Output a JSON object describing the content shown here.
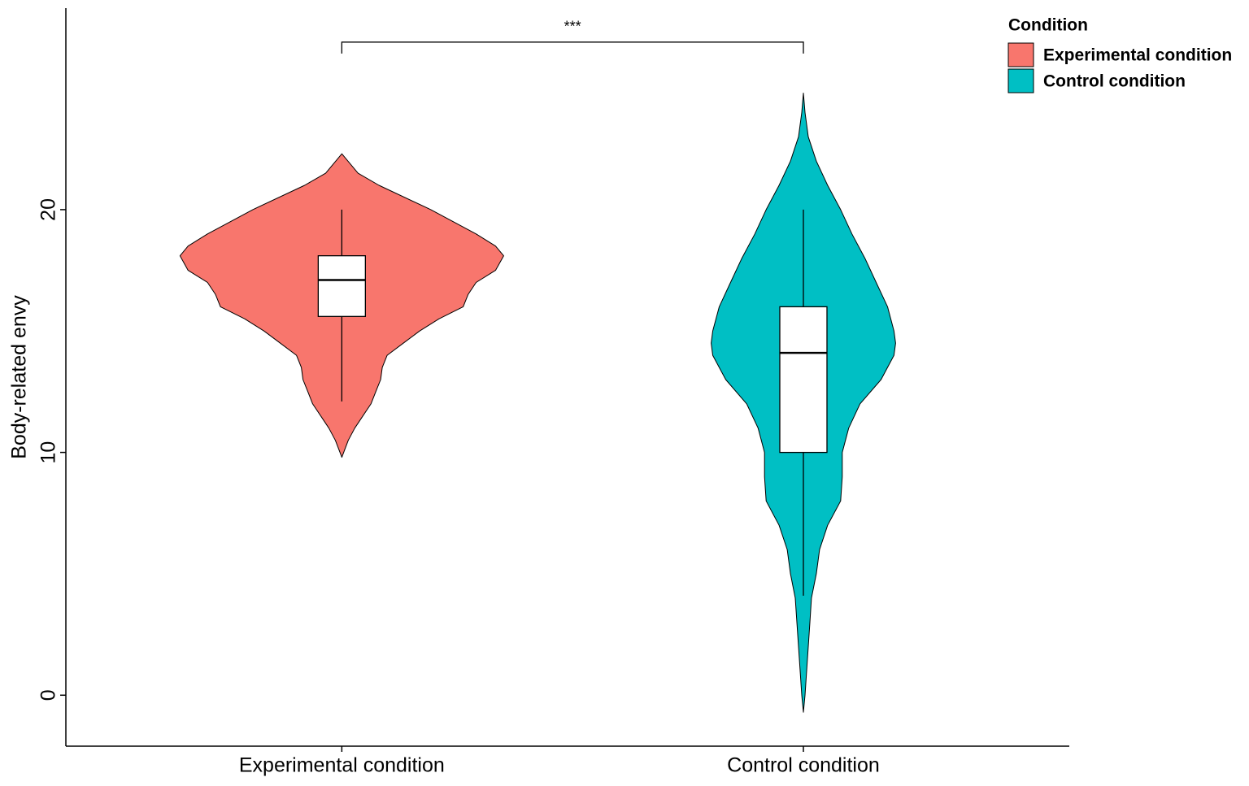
{
  "chart_data": {
    "type": "violin",
    "ylabel": "Body-related envy",
    "categories": [
      "Experimental condition",
      "Control condition"
    ],
    "series": [
      {
        "name": "Experimental condition",
        "color": "#F8766D",
        "box": {
          "whisker_low": 12.1,
          "q1": 15.6,
          "median": 17.1,
          "q3": 18.1,
          "whisker_high": 20
        },
        "violin": {
          "y": [
            22.3,
            21.5,
            21,
            20,
            19,
            18.5,
            18.1,
            17.5,
            17,
            16.5,
            16,
            15.5,
            15,
            14.5,
            14,
            13.5,
            13,
            12.5,
            12,
            11.5,
            11,
            10.5,
            9.8
          ],
          "density": [
            0,
            0.1,
            0.23,
            0.55,
            0.83,
            0.95,
            1,
            0.95,
            0.83,
            0.78,
            0.75,
            0.6,
            0.48,
            0.38,
            0.28,
            0.25,
            0.24,
            0.21,
            0.18,
            0.13,
            0.08,
            0.04,
            0
          ]
        }
      },
      {
        "name": "Control condition",
        "color": "#00BFC4",
        "box": {
          "whisker_low": 4.1,
          "q1": 10,
          "median": 14.1,
          "q3": 16,
          "whisker_high": 20
        },
        "violin": {
          "y": [
            24.8,
            24,
            23,
            22,
            21,
            20,
            19,
            18,
            17,
            16,
            15,
            14.5,
            14,
            13,
            12,
            11,
            10,
            9,
            8,
            7,
            6,
            5,
            4,
            3,
            2,
            1,
            0,
            -0.7
          ],
          "density": [
            0,
            0.01,
            0.03,
            0.08,
            0.15,
            0.23,
            0.3,
            0.38,
            0.45,
            0.52,
            0.56,
            0.57,
            0.56,
            0.48,
            0.35,
            0.28,
            0.24,
            0.24,
            0.23,
            0.15,
            0.1,
            0.08,
            0.05,
            0.04,
            0.03,
            0.02,
            0.01,
            0
          ]
        }
      }
    ],
    "ylim": [
      -2.1,
      28.3
    ],
    "yticks": [
      0,
      10,
      20
    ],
    "grid": false,
    "legend_title": "Condition",
    "legend_position": "right",
    "annotation": {
      "label": "***",
      "y": 26.9
    }
  }
}
